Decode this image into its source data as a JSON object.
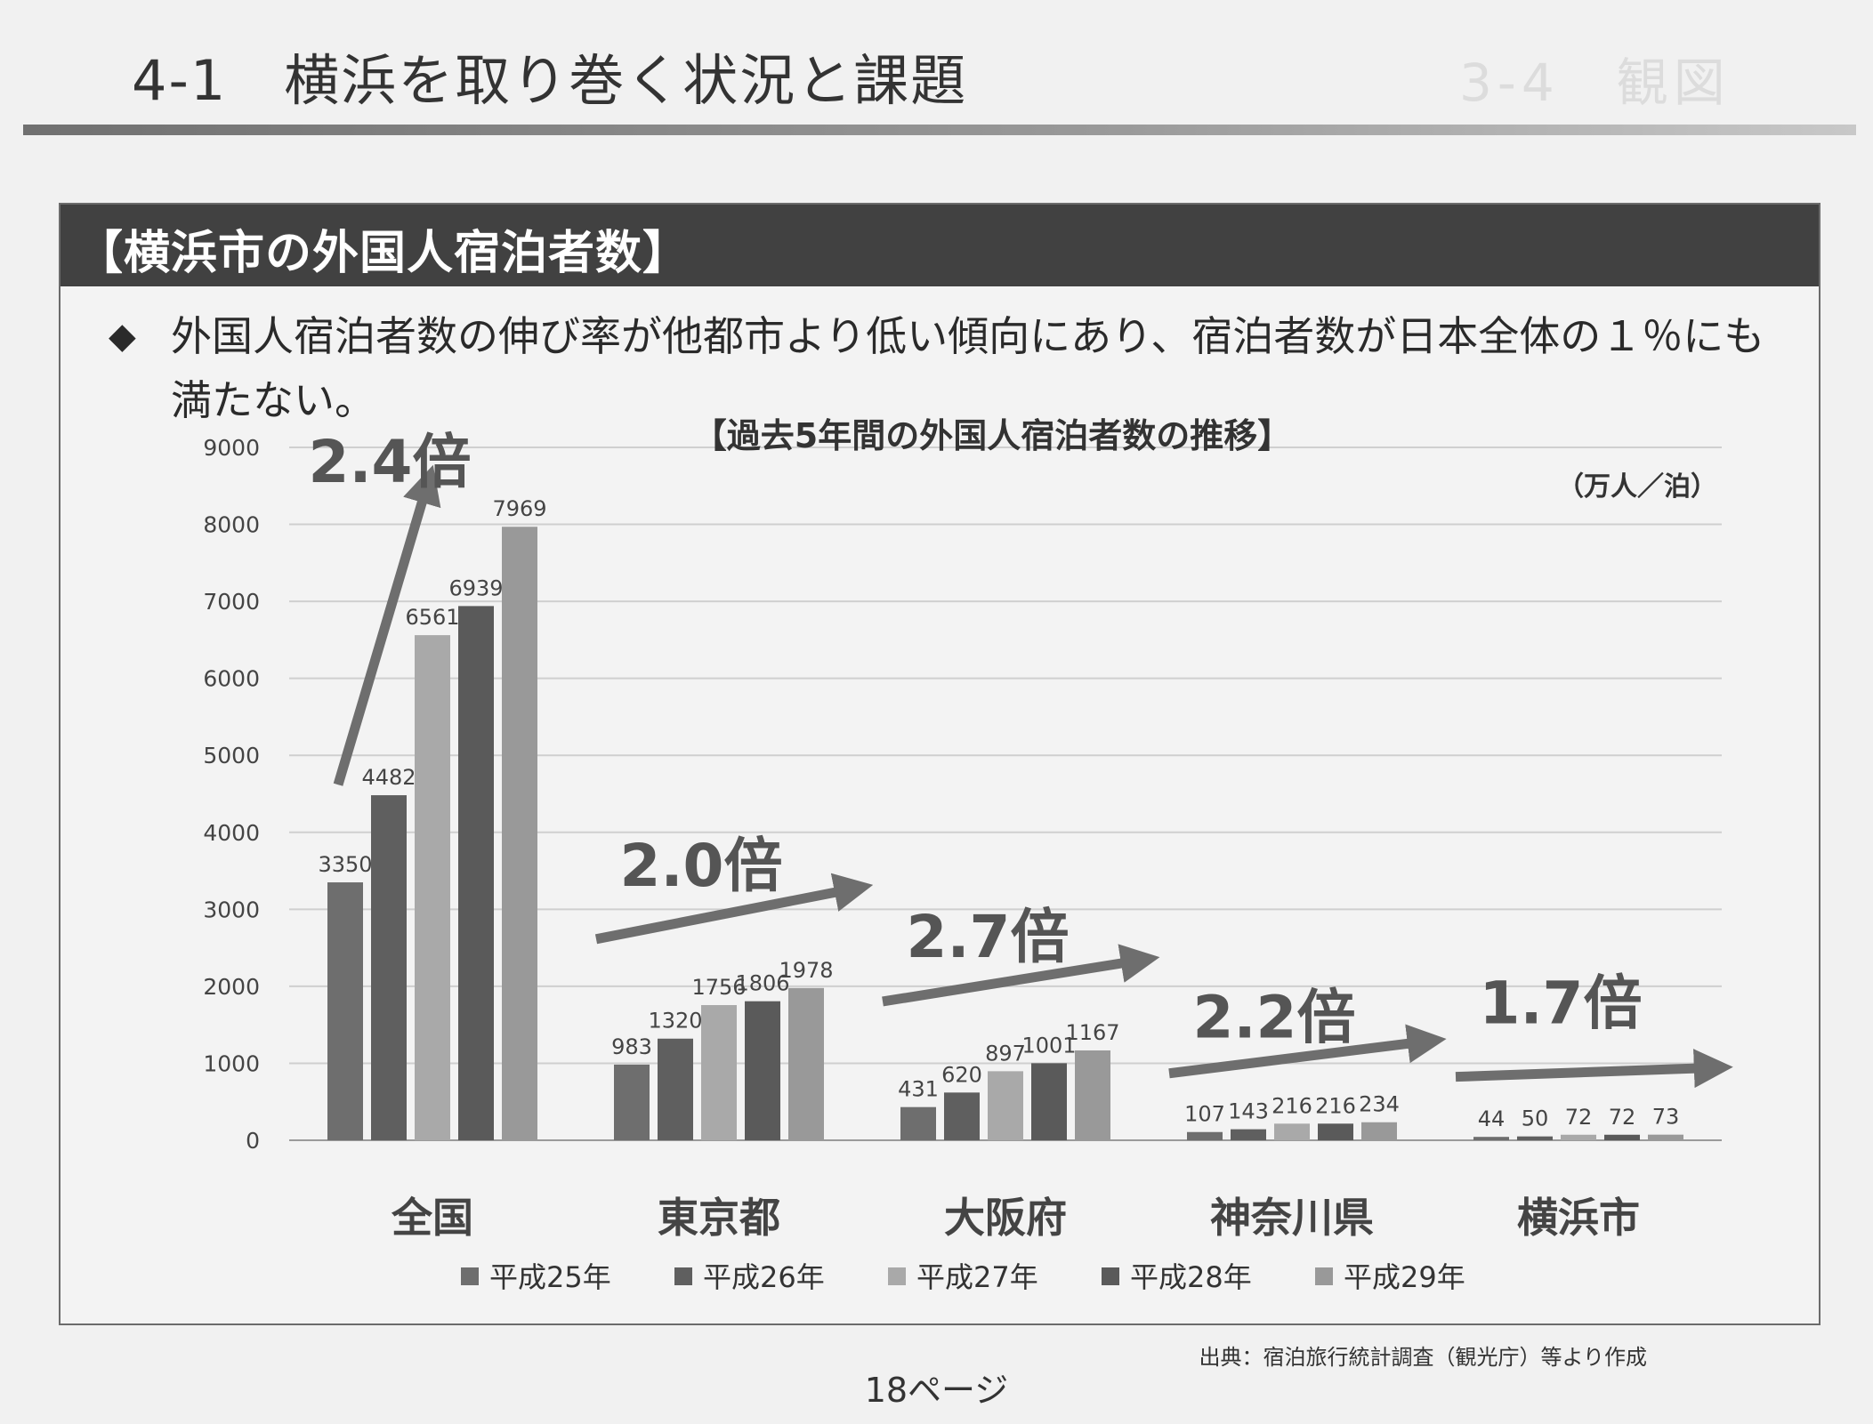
{
  "page": {
    "title": "4-1　横浜を取り巻く状況と課題",
    "ghost_text": "3-4　観図",
    "page_number": "18ページ",
    "source": "出典：宿泊旅行統計調査（観光庁）等より作成"
  },
  "panel": {
    "header": "【横浜市の外国人宿泊者数】",
    "bullet_symbol": "◆",
    "bullet_text": "外国人宿泊者数の伸び率が他都市より低い傾向にあり、宿泊者数が日本全体の１％にも満たない。"
  },
  "chart_data": {
    "type": "bar",
    "title": "【過去5年間の外国人宿泊者数の推移】",
    "unit": "（万人／泊）",
    "categories": [
      "全国",
      "東京都",
      "大阪府",
      "神奈川県",
      "横浜市"
    ],
    "series": [
      {
        "name": "平成25年",
        "values": [
          3350,
          983,
          431,
          107,
          44
        ],
        "color": "#6e6e6e"
      },
      {
        "name": "平成26年",
        "values": [
          4482,
          1320,
          620,
          143,
          50
        ],
        "color": "#5f5f5f"
      },
      {
        "name": "平成27年",
        "values": [
          6561,
          1756,
          897,
          216,
          72
        ],
        "color": "#a9a9a9"
      },
      {
        "name": "平成28年",
        "values": [
          6939,
          1806,
          1001,
          216,
          72
        ],
        "color": "#5a5a5a"
      },
      {
        "name": "平成29年",
        "values": [
          7969,
          1978,
          1167,
          234,
          73
        ],
        "color": "#999999"
      }
    ],
    "growth_labels": [
      "2.4倍",
      "2.0倍",
      "2.7倍",
      "2.2倍",
      "1.7倍"
    ],
    "ylim": [
      0,
      9000
    ],
    "yticks": [
      0,
      1000,
      2000,
      3000,
      4000,
      5000,
      6000,
      7000,
      8000,
      9000
    ],
    "grid": true,
    "legend_position": "bottom"
  }
}
